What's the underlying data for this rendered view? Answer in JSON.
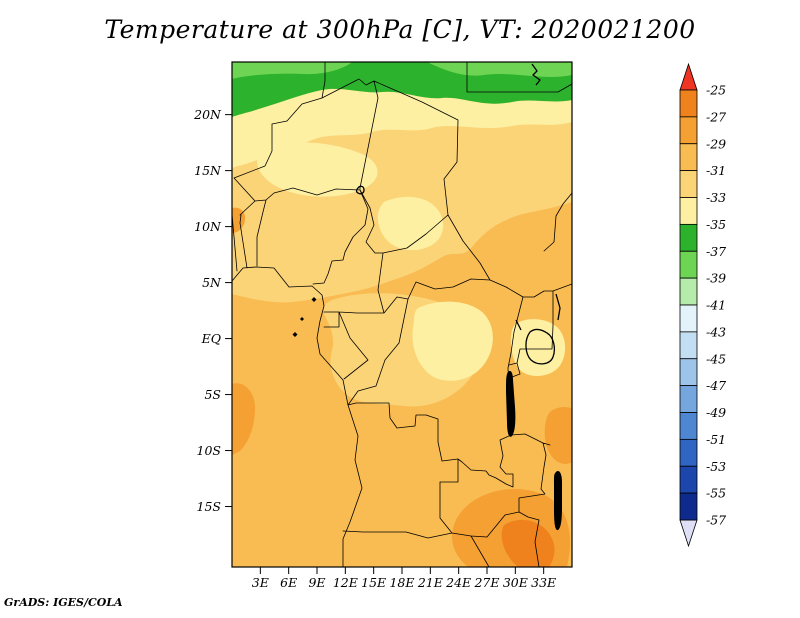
{
  "title": "Temperature at 300hPa [C], VT: 2020021200",
  "credit": "GrADS: IGES/COLA",
  "colors": {
    "background": "#ffffff",
    "text": "#000000",
    "map_outline": "#000000"
  },
  "chart_data": {
    "type": "heatmap",
    "title": "Temperature at 300hPa [C], VT: 2020021200",
    "variable": "Temperature",
    "level": "300hPa",
    "units": "C",
    "valid_time": "2020021200",
    "renderer_credit": "GrADS: IGES/COLA",
    "x_axis": {
      "label": "longitude",
      "ticks": [
        "3E",
        "6E",
        "9E",
        "12E",
        "15E",
        "18E",
        "21E",
        "24E",
        "27E",
        "30E",
        "33E"
      ],
      "range_deg_east": [
        0,
        36
      ]
    },
    "y_axis": {
      "label": "latitude",
      "ticks": [
        "20N",
        "15N",
        "10N",
        "5N",
        "EQ",
        "5S",
        "10S",
        "15S"
      ],
      "range_deg_north": [
        -20.4,
        24.7
      ]
    },
    "colorbar": {
      "position": "right",
      "orientation": "vertical",
      "boundary_labels": [
        "-25",
        "-27",
        "-29",
        "-31",
        "-33",
        "-35",
        "-37",
        "-39",
        "-41",
        "-43",
        "-45",
        "-47",
        "-49",
        "-51",
        "-53",
        "-55",
        "-57"
      ],
      "segment_colors": [
        "#f0821e",
        "#f5a032",
        "#f9bc52",
        "#fbd478",
        "#fdf0a3",
        "#2db22d",
        "#6ed554",
        "#b5ecac",
        "#e4f3fa",
        "#c3def2",
        "#9dc5e9",
        "#75a7de",
        "#4e86d2",
        "#3066c1",
        "#1c46ab",
        "#0e2a8c"
      ],
      "above_color": "#ee3423",
      "below_color": "#dfe0f6"
    },
    "field_regions": [
      {
        "area": "northern edge of map (~22-24N)",
        "approx_value_c": "-35 to -39 (greens)"
      },
      {
        "area": "band just south of greens (~15-21N)",
        "approx_value_c": "-33 to -35 (pale yellow)"
      },
      {
        "area": "Sahel / central band (~8-15N)",
        "approx_value_c": "-31 to -33"
      },
      {
        "area": "central equatorial basin (~5N-5S, 10-27E)",
        "approx_value_c": "-31 to -33"
      },
      {
        "area": "eastern lakes region (~0-5S, 28-34E)",
        "approx_value_c": "-31 to -35"
      },
      {
        "area": "southern half (~5S-20S)",
        "approx_value_c": "-29 to -31 (orange)"
      },
      {
        "area": "south-east corner (~14-19S, 27-34E)",
        "approx_value_c": "-25 to -29 (dark orange)"
      },
      {
        "area": "west-coast edge patches (~7S and ~11N near 0E)",
        "approx_value_c": "-27 to -29"
      }
    ]
  }
}
